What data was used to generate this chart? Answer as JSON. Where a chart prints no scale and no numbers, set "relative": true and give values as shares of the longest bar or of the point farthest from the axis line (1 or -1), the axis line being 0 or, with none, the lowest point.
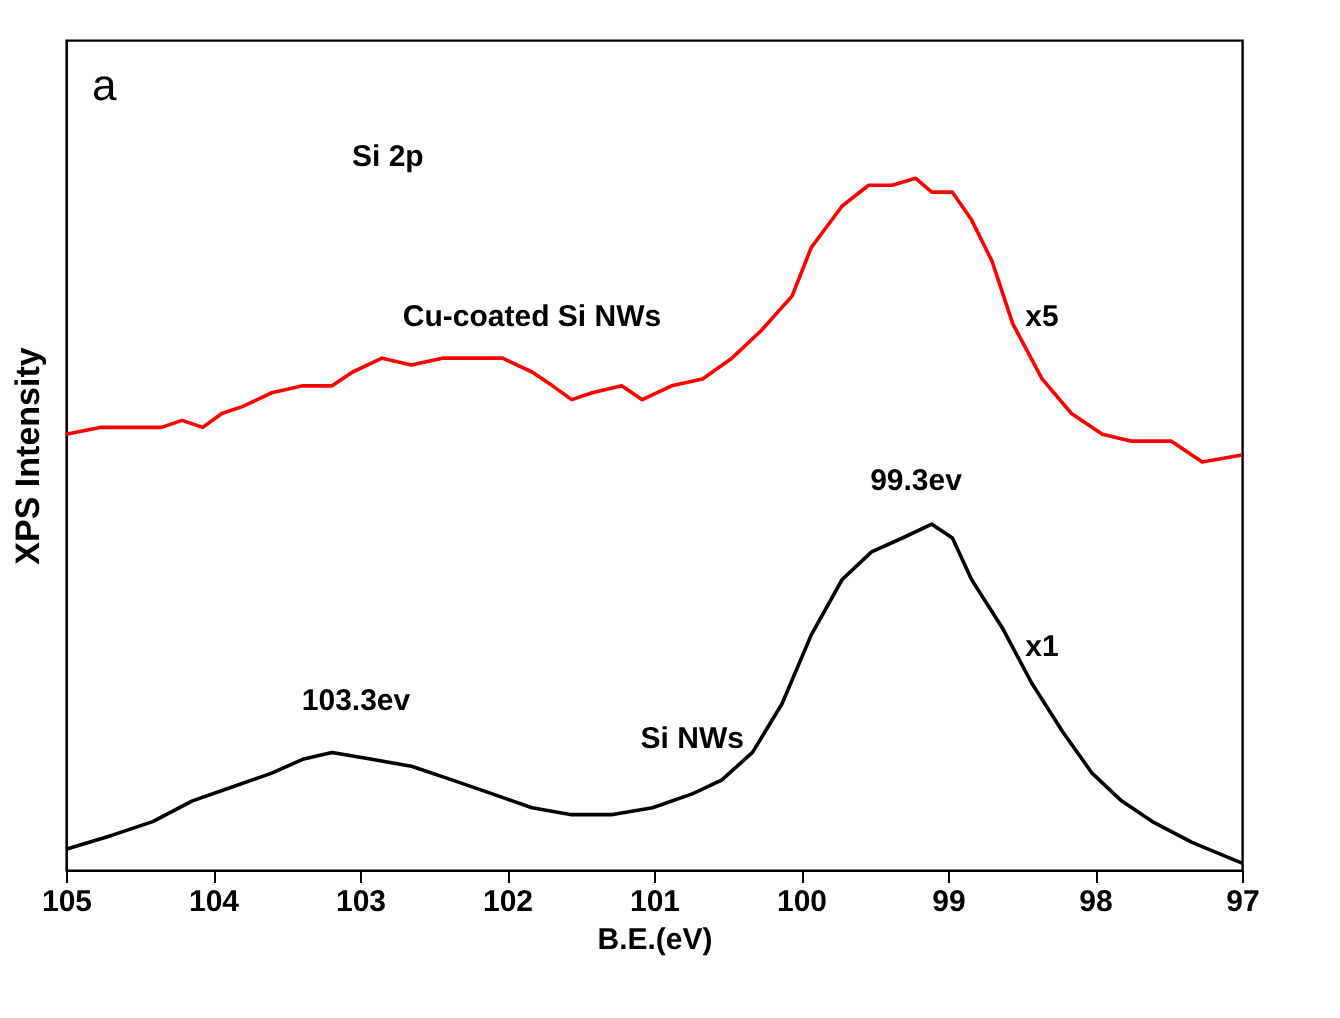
{
  "chart_data": {
    "type": "line",
    "xlabel": "B.E.(eV)",
    "ylabel": "XPS Intensity",
    "relative": true,
    "xlim": [
      105,
      97
    ],
    "xticks": [
      105,
      104,
      103,
      102,
      101,
      100,
      99,
      98,
      97
    ],
    "grid": false,
    "marker": "none",
    "line_style": "solid",
    "annotations": [
      "a",
      "Si  2p",
      "x5",
      "99.3ev",
      "x1",
      "103.3ev"
    ],
    "series": [
      {
        "name": "Cu-coated Si NWs",
        "color": "#ff0000",
        "x": [
          105.0,
          104.76,
          104.55,
          104.35,
          104.21,
          104.07,
          103.94,
          103.8,
          103.6,
          103.39,
          103.19,
          103.05,
          102.85,
          102.65,
          102.44,
          102.24,
          102.03,
          101.83,
          101.69,
          101.56,
          101.42,
          101.22,
          101.08,
          100.88,
          100.67,
          100.47,
          100.27,
          100.06,
          99.93,
          99.72,
          99.54,
          99.38,
          99.22,
          99.11,
          98.97,
          98.84,
          98.7,
          98.56,
          98.36,
          98.16,
          97.95,
          97.75,
          97.48,
          97.27,
          97.0
        ],
        "values": [
          0.63,
          0.64,
          0.64,
          0.64,
          0.65,
          0.64,
          0.66,
          0.67,
          0.69,
          0.7,
          0.7,
          0.72,
          0.74,
          0.73,
          0.74,
          0.74,
          0.74,
          0.72,
          0.7,
          0.68,
          0.69,
          0.7,
          0.68,
          0.7,
          0.71,
          0.74,
          0.78,
          0.83,
          0.9,
          0.96,
          0.99,
          0.99,
          1.0,
          0.98,
          0.98,
          0.94,
          0.88,
          0.79,
          0.71,
          0.66,
          0.63,
          0.62,
          0.62,
          0.59,
          0.6
        ]
      },
      {
        "name": "Si NWs",
        "color": "#000000",
        "x": [
          105.0,
          104.69,
          104.41,
          104.14,
          103.87,
          103.6,
          103.39,
          103.19,
          102.92,
          102.65,
          102.37,
          102.1,
          101.83,
          101.56,
          101.29,
          101.01,
          100.74,
          100.54,
          100.33,
          100.13,
          99.93,
          99.72,
          99.52,
          99.31,
          99.11,
          98.97,
          98.84,
          98.63,
          98.43,
          98.22,
          98.02,
          97.82,
          97.61,
          97.34,
          97.0
        ],
        "values": [
          0.03,
          0.05,
          0.07,
          0.1,
          0.12,
          0.14,
          0.16,
          0.17,
          0.16,
          0.15,
          0.13,
          0.11,
          0.09,
          0.08,
          0.08,
          0.09,
          0.11,
          0.13,
          0.17,
          0.24,
          0.34,
          0.42,
          0.46,
          0.48,
          0.5,
          0.48,
          0.42,
          0.35,
          0.27,
          0.2,
          0.14,
          0.1,
          0.07,
          0.04,
          0.01
        ]
      }
    ]
  }
}
